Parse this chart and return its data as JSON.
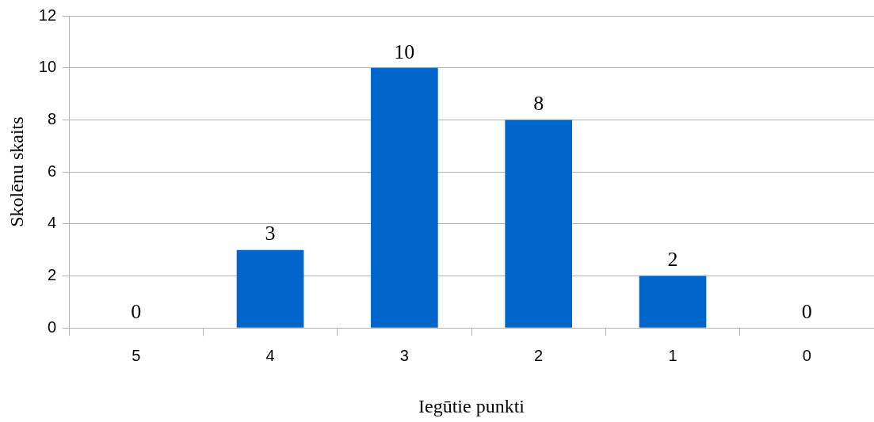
{
  "chart_data": {
    "type": "bar",
    "xlabel": "Iegūtie punkti",
    "ylabel": "Skolēnu skaits",
    "categories": [
      "5",
      "4",
      "3",
      "2",
      "1",
      "0"
    ],
    "values": [
      0,
      3,
      10,
      8,
      2,
      0
    ],
    "color": "#0066cc",
    "ylim": [
      0,
      12
    ],
    "yticks": [
      0,
      2,
      4,
      6,
      8,
      10,
      12
    ],
    "grid": "y",
    "data_labels": true
  }
}
